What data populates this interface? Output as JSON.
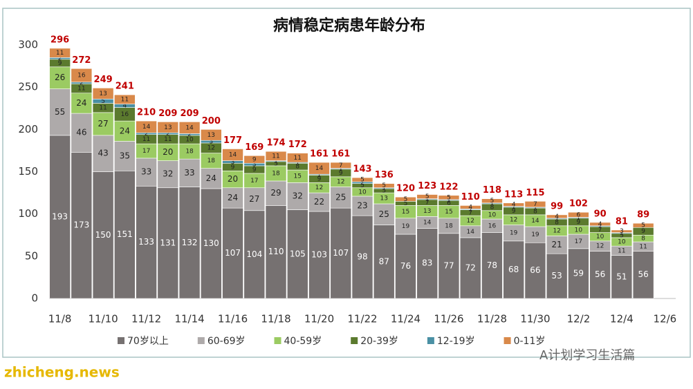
{
  "chart_data": {
    "type": "stacked_bar",
    "title": "病情稳定病患年龄分布",
    "categories": [
      "11/8",
      null,
      "11/10",
      null,
      "11/12",
      null,
      "11/14",
      null,
      "11/16",
      null,
      "11/18",
      null,
      "11/20",
      null,
      "11/22",
      null,
      "11/24",
      null,
      "11/26",
      null,
      "11/28",
      null,
      "11/30",
      null,
      "12/2",
      null,
      "12/4",
      null,
      "12/6"
    ],
    "series": [
      {
        "name": "70岁以上",
        "color": "#767171",
        "values": [
          193,
          173,
          150,
          151,
          133,
          131,
          132,
          130,
          107,
          104,
          110,
          105,
          103,
          107,
          98,
          87,
          76,
          83,
          77,
          72,
          78,
          68,
          66,
          53,
          59,
          56,
          51,
          56,
          null
        ]
      },
      {
        "name": "60-69岁",
        "color": "#aeaaaa",
        "values": [
          55,
          46,
          43,
          35,
          33,
          32,
          33,
          24,
          24,
          27,
          29,
          32,
          22,
          25,
          23,
          25,
          19,
          14,
          18,
          14,
          16,
          19,
          19,
          21,
          17,
          12,
          11,
          11,
          null
        ]
      },
      {
        "name": "40-59岁",
        "color": "#9bcb62",
        "values": [
          26,
          24,
          27,
          24,
          17,
          20,
          18,
          18,
          20,
          17,
          18,
          15,
          12,
          12,
          10,
          13,
          15,
          13,
          15,
          12,
          10,
          12,
          14,
          12,
          10,
          10,
          10,
          8,
          null
        ]
      },
      {
        "name": "20-39岁",
        "color": "#5b7a2e",
        "values": [
          9,
          11,
          11,
          16,
          11,
          11,
          10,
          12,
          9,
          9,
          5,
          8,
          9,
          9,
          5,
          5,
          5,
          7,
          6,
          7,
          8,
          9,
          8,
          8,
          9,
          7,
          5,
          9,
          null
        ]
      },
      {
        "name": "12-19岁",
        "color": "#4a90a4",
        "values": [
          2,
          2,
          5,
          4,
          2,
          2,
          2,
          3,
          3,
          3,
          1,
          1,
          1,
          1,
          2,
          1,
          0,
          1,
          1,
          1,
          1,
          1,
          1,
          1,
          1,
          1,
          1,
          0,
          null
        ]
      },
      {
        "name": "0-11岁",
        "color": "#d9894a",
        "values": [
          11,
          16,
          13,
          11,
          14,
          13,
          14,
          13,
          14,
          9,
          11,
          11,
          14,
          7,
          5,
          5,
          5,
          5,
          5,
          4,
          5,
          4,
          7,
          4,
          6,
          4,
          3,
          5,
          null
        ]
      }
    ],
    "totals": [
      296,
      272,
      249,
      241,
      210,
      209,
      209,
      200,
      177,
      169,
      174,
      172,
      161,
      161,
      143,
      136,
      120,
      123,
      122,
      110,
      118,
      113,
      115,
      99,
      102,
      90,
      81,
      89,
      null
    ],
    "totals_color": "#c00000",
    "ylim": [
      0,
      300
    ],
    "yticks": [
      0,
      50,
      100,
      150,
      200,
      250,
      300
    ],
    "grid": false,
    "legend": "bottom"
  },
  "watermark": "zhicheng.news",
  "credit": "A计划学习生活篇"
}
